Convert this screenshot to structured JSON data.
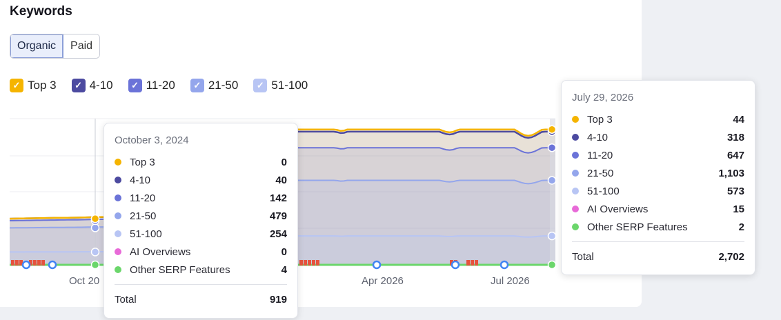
{
  "panel": {
    "title": "Keywords",
    "tabs": [
      {
        "label": "Organic",
        "active": true
      },
      {
        "label": "Paid",
        "active": false
      }
    ],
    "legend": [
      {
        "label": "Top 3",
        "color": "#f5b400"
      },
      {
        "label": "4-10",
        "color": "#4c4aa0"
      },
      {
        "label": "11-20",
        "color": "#6b73d8"
      },
      {
        "label": "21-50",
        "color": "#94a6ec"
      },
      {
        "label": "51-100",
        "color": "#b8c5f4"
      }
    ]
  },
  "chart_data": {
    "type": "area",
    "stacked": true,
    "x_ticks": [
      "Oct 20",
      "Apr 2026",
      "Jul 2026"
    ],
    "series": [
      {
        "name": "51-100",
        "color": "#b8c5f4"
      },
      {
        "name": "21-50",
        "color": "#94a6ec"
      },
      {
        "name": "11-20",
        "color": "#6b73d8"
      },
      {
        "name": "4-10",
        "color": "#4c4aa0"
      },
      {
        "name": "Top 3",
        "color": "#f5b400"
      }
    ],
    "points": [
      {
        "date": "October 3, 2024",
        "values": {
          "Top 3": 0,
          "4-10": 40,
          "11-20": 142,
          "21-50": 479,
          "51-100": 254,
          "AI Overviews": 0,
          "Other SERP Features": 4
        },
        "total": 919
      },
      {
        "date": "July 29, 2026",
        "values": {
          "Top 3": 44,
          "4-10": 318,
          "11-20": 647,
          "21-50": 1103,
          "51-100": 573,
          "AI Overviews": 15,
          "Other SERP Features": 2
        },
        "total": 2702
      }
    ]
  },
  "tooltips": [
    {
      "date": "October 3, 2024",
      "rows": [
        {
          "label": "Top 3",
          "value": "0",
          "color": "#f5b400"
        },
        {
          "label": "4-10",
          "value": "40",
          "color": "#4c4aa0"
        },
        {
          "label": "11-20",
          "value": "142",
          "color": "#6b73d8"
        },
        {
          "label": "21-50",
          "value": "479",
          "color": "#94a6ec"
        },
        {
          "label": "51-100",
          "value": "254",
          "color": "#b8c5f4"
        },
        {
          "label": "AI Overviews",
          "value": "0",
          "color": "#e86ad8"
        },
        {
          "label": "Other SERP Features",
          "value": "4",
          "color": "#6bd66b"
        }
      ],
      "total_label": "Total",
      "total_value": "919"
    },
    {
      "date": "July 29, 2026",
      "rows": [
        {
          "label": "Top 3",
          "value": "44",
          "color": "#f5b400"
        },
        {
          "label": "4-10",
          "value": "318",
          "color": "#4c4aa0"
        },
        {
          "label": "11-20",
          "value": "647",
          "color": "#6b73d8"
        },
        {
          "label": "21-50",
          "value": "1,103",
          "color": "#94a6ec"
        },
        {
          "label": "51-100",
          "value": "573",
          "color": "#b8c5f4"
        },
        {
          "label": "AI Overviews",
          "value": "15",
          "color": "#e86ad8"
        },
        {
          "label": "Other SERP Features",
          "value": "2",
          "color": "#6bd66b"
        }
      ],
      "total_label": "Total",
      "total_value": "2,702"
    }
  ]
}
